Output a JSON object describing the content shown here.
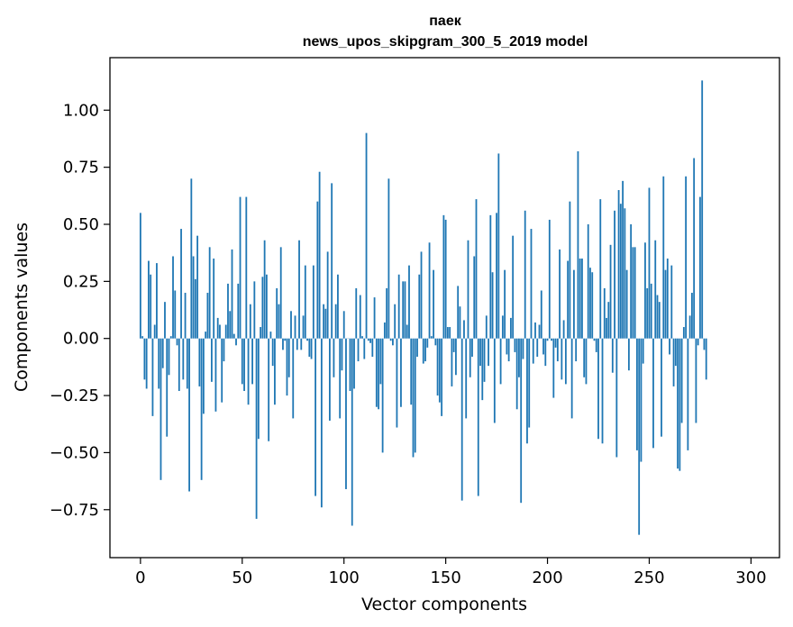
{
  "chart_data": {
    "type": "bar",
    "title_line1": "паек",
    "title_line2": "news_upos_skipgram_300_5_2019 model",
    "xlabel": "Vector components",
    "ylabel": "Components values",
    "xlim": [
      -15,
      314
    ],
    "ylim": [
      -0.96,
      1.23
    ],
    "xticks": [
      0,
      50,
      100,
      150,
      200,
      250,
      300
    ],
    "xtick_labels": [
      "0",
      "50",
      "100",
      "150",
      "200",
      "250",
      "300"
    ],
    "yticks": [
      -0.75,
      -0.5,
      -0.25,
      0.0,
      0.25,
      0.5,
      0.75,
      1.0
    ],
    "ytick_labels": [
      "−0.75",
      "−0.50",
      "−0.25",
      "0.00",
      "0.25",
      "0.50",
      "0.75",
      "1.00"
    ],
    "bar_color": "#1f77b4",
    "values": [
      0.55,
      0.01,
      -0.18,
      -0.22,
      0.34,
      0.28,
      -0.34,
      0.06,
      0.33,
      -0.22,
      -0.62,
      -0.13,
      0.16,
      -0.43,
      -0.16,
      0.01,
      0.36,
      0.21,
      -0.03,
      -0.23,
      0.48,
      -0.18,
      0.2,
      -0.22,
      -0.67,
      0.7,
      0.36,
      0.26,
      0.45,
      -0.21,
      -0.62,
      -0.33,
      0.03,
      0.2,
      0.4,
      -0.19,
      0.35,
      -0.32,
      0.09,
      0.06,
      -0.28,
      -0.1,
      0.06,
      0.24,
      0.12,
      0.39,
      0.02,
      -0.03,
      0.24,
      0.62,
      -0.2,
      -0.23,
      0.62,
      -0.29,
      0.15,
      -0.2,
      0.25,
      -0.79,
      -0.44,
      0.05,
      0.27,
      0.43,
      0.28,
      -0.45,
      0.03,
      -0.12,
      -0.29,
      0.22,
      0.15,
      0.4,
      -0.05,
      -0.01,
      -0.25,
      -0.17,
      0.12,
      -0.35,
      0.1,
      -0.05,
      0.43,
      -0.05,
      0.1,
      0.32,
      -0.01,
      -0.08,
      -0.09,
      0.32,
      -0.69,
      0.6,
      0.73,
      -0.74,
      0.15,
      0.13,
      0.38,
      -0.36,
      0.68,
      -0.17,
      0.15,
      0.28,
      -0.35,
      -0.14,
      0.12,
      -0.66,
      0.0,
      -0.23,
      -0.82,
      -0.22,
      0.22,
      -0.1,
      0.19,
      0.01,
      -0.09,
      0.9,
      -0.01,
      -0.02,
      -0.08,
      0.18,
      -0.3,
      -0.31,
      -0.2,
      -0.5,
      0.07,
      0.22,
      0.7,
      -0.01,
      -0.03,
      0.15,
      -0.39,
      0.28,
      -0.3,
      0.25,
      0.25,
      0.06,
      0.32,
      -0.29,
      -0.52,
      -0.5,
      -0.08,
      0.28,
      0.38,
      -0.11,
      -0.1,
      -0.04,
      0.42,
      0.01,
      0.3,
      -0.03,
      -0.25,
      -0.28,
      -0.34,
      0.54,
      0.52,
      0.05,
      0.05,
      -0.21,
      -0.06,
      -0.16,
      0.23,
      0.14,
      -0.71,
      0.08,
      -0.35,
      0.43,
      -0.17,
      -0.08,
      0.36,
      0.61,
      -0.69,
      -0.12,
      -0.27,
      -0.19,
      0.1,
      -0.12,
      0.54,
      0.29,
      -0.37,
      0.55,
      0.81,
      -0.2,
      0.1,
      0.3,
      -0.07,
      -0.1,
      0.09,
      0.45,
      -0.06,
      -0.31,
      -0.17,
      -0.72,
      -0.09,
      0.56,
      -0.46,
      -0.39,
      0.48,
      -0.11,
      0.07,
      -0.08,
      0.06,
      0.21,
      -0.07,
      -0.12,
      -0.01,
      0.52,
      -0.01,
      -0.26,
      -0.04,
      -0.1,
      0.39,
      -0.18,
      0.08,
      -0.2,
      0.34,
      0.6,
      -0.35,
      0.3,
      -0.1,
      0.82,
      0.35,
      0.35,
      -0.17,
      -0.2,
      0.5,
      0.31,
      0.29,
      -0.01,
      -0.06,
      -0.44,
      0.61,
      -0.46,
      0.22,
      0.09,
      0.16,
      0.41,
      -0.15,
      0.56,
      -0.52,
      0.65,
      0.59,
      0.69,
      0.57,
      0.3,
      -0.14,
      0.5,
      0.4,
      0.4,
      -0.49,
      -0.86,
      -0.54,
      -0.11,
      0.42,
      0.22,
      0.66,
      0.24,
      -0.48,
      0.43,
      0.19,
      0.16,
      -0.43,
      0.71,
      0.3,
      0.35,
      -0.07,
      0.32,
      -0.21,
      -0.12,
      -0.57,
      -0.58,
      -0.37,
      0.05,
      0.71,
      -0.49,
      0.1,
      0.2,
      0.79,
      -0.37,
      -0.03,
      0.62,
      1.13,
      -0.05,
      -0.18
    ],
    "grid": false,
    "legend": "none"
  }
}
